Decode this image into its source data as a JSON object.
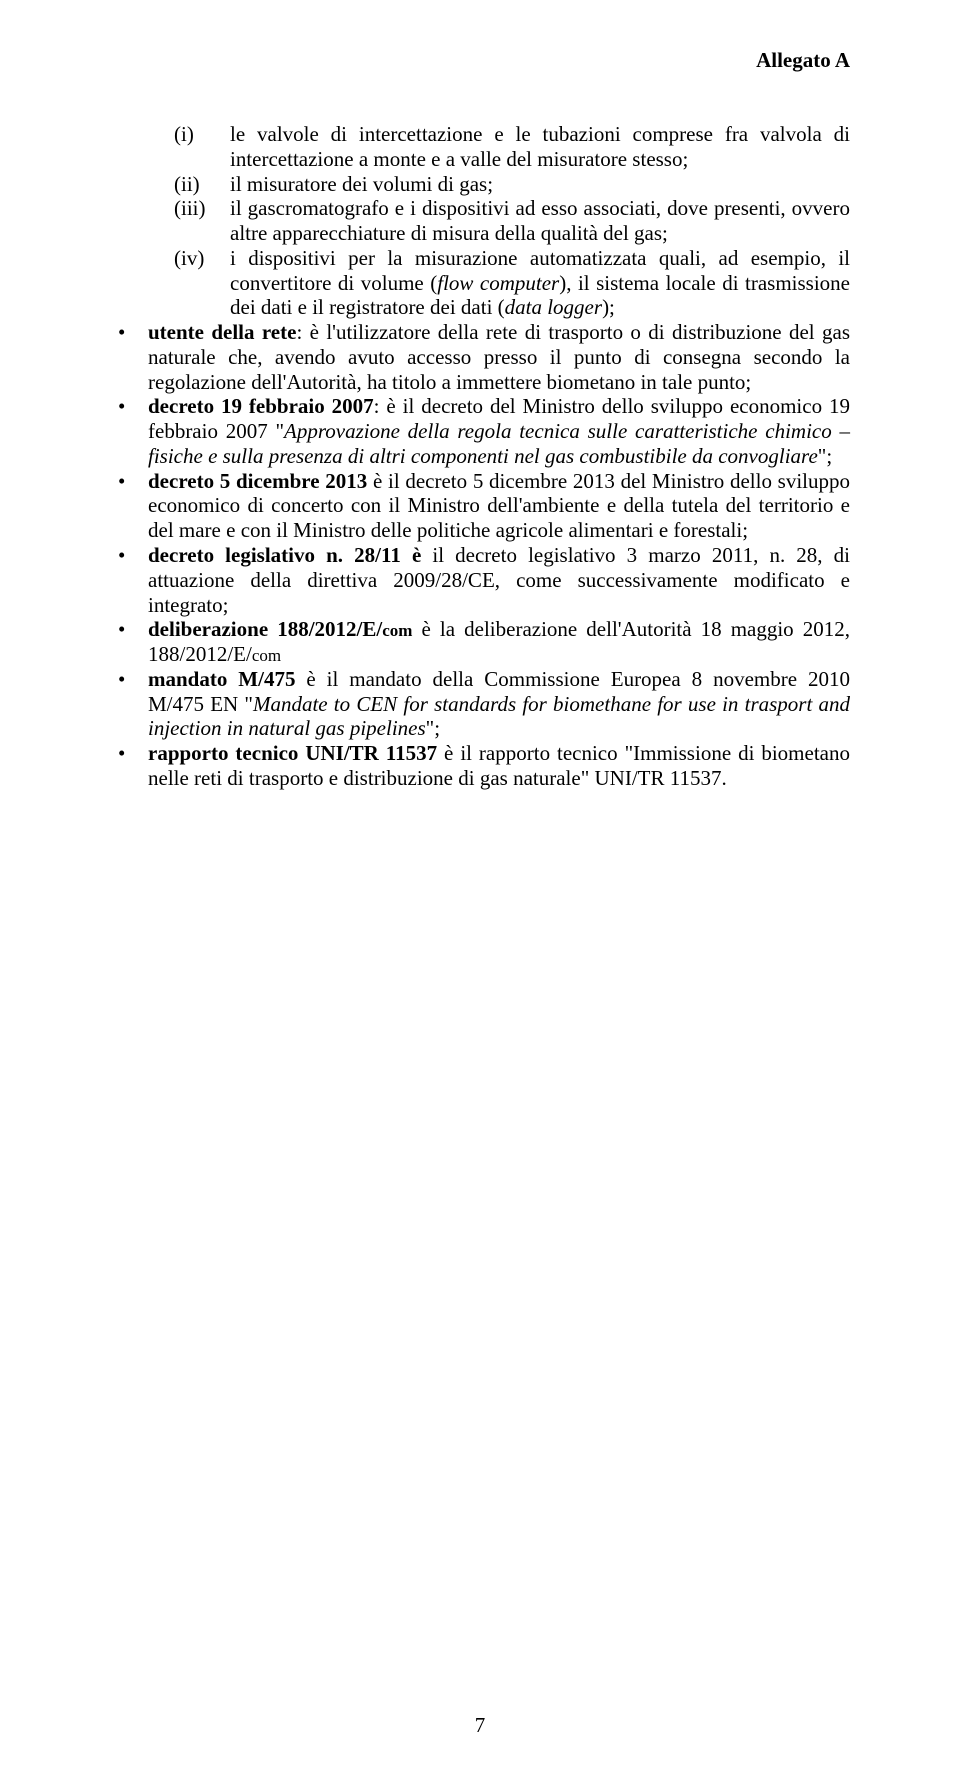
{
  "header": "Allegato A",
  "sub": {
    "i": {
      "marker": "(i)",
      "text": "le valvole di intercettazione e le tubazioni comprese fra valvola di intercettazione a monte e a valle del misuratore stesso;"
    },
    "ii": {
      "marker": "(ii)",
      "text": "il misuratore dei volumi di gas;"
    },
    "iii": {
      "marker": "(iii)",
      "text": "il gascromatografo e i dispositivi ad esso associati, dove presenti, ovvero altre apparecchiature di misura della qualità del gas;"
    },
    "iv": {
      "marker": "(iv)",
      "t1": "i dispositivi per la misurazione automatizzata quali, ad esempio, il convertitore di volume (",
      "t2": "flow computer",
      "t3": "), il sistema locale di trasmissione dei dati e il registratore dei dati (",
      "t4": "data logger",
      "t5": ");"
    }
  },
  "bullets": {
    "b1": {
      "t1": "utente della rete",
      "t2": ": è l'utilizzatore della rete di trasporto o di distribuzione del gas naturale che, avendo avuto accesso presso il punto di consegna secondo la regolazione dell'Autorità, ha titolo a immettere biometano in tale punto;"
    },
    "b2": {
      "t1": "decreto 19 febbraio 2007",
      "t2": ": è il decreto del Ministro dello sviluppo economico 19 febbraio 2007 \"",
      "t3": "Approvazione della regola tecnica sulle caratteristiche chimico –fisiche e sulla presenza di altri componenti nel gas combustibile da convogliare",
      "t4": "\";"
    },
    "b3": {
      "t1": "decreto 5 dicembre 2013",
      "t2": " è il decreto 5 dicembre 2013 del Ministro dello sviluppo economico di concerto con il Ministro dell'ambiente e della tutela del territorio e del mare e con il Ministro delle politiche agricole alimentari e forestali;"
    },
    "b4": {
      "t1": "decreto legislativo n. 28/11 è ",
      "t2": "il decreto legislativo 3 marzo 2011, n. 28, di attuazione della direttiva 2009/28/CE, come successivamente modificato e integrato;"
    },
    "b5": {
      "t1": "deliberazione 188/2012/E/",
      "t1b": "com",
      "t2": " è la deliberazione dell'Autorità 18 maggio 2012, 188/2012/E/",
      "t2b": "com"
    },
    "b6": {
      "t1": "mandato M/475",
      "t2": " è il mandato della Commissione Europea 8 novembre 2010 M/475 EN \"",
      "t3": "Mandate to CEN for standards for biomethane for use in trasport and injection in natural gas pipelines",
      "t4": "\";"
    },
    "b7": {
      "t1": "rapporto tecnico UNI/TR 11537",
      "t2": " è il rapporto tecnico \"Immissione di biometano nelle reti di trasporto e distribuzione di gas naturale\" UNI/TR 11537."
    }
  },
  "pagenum": "7"
}
